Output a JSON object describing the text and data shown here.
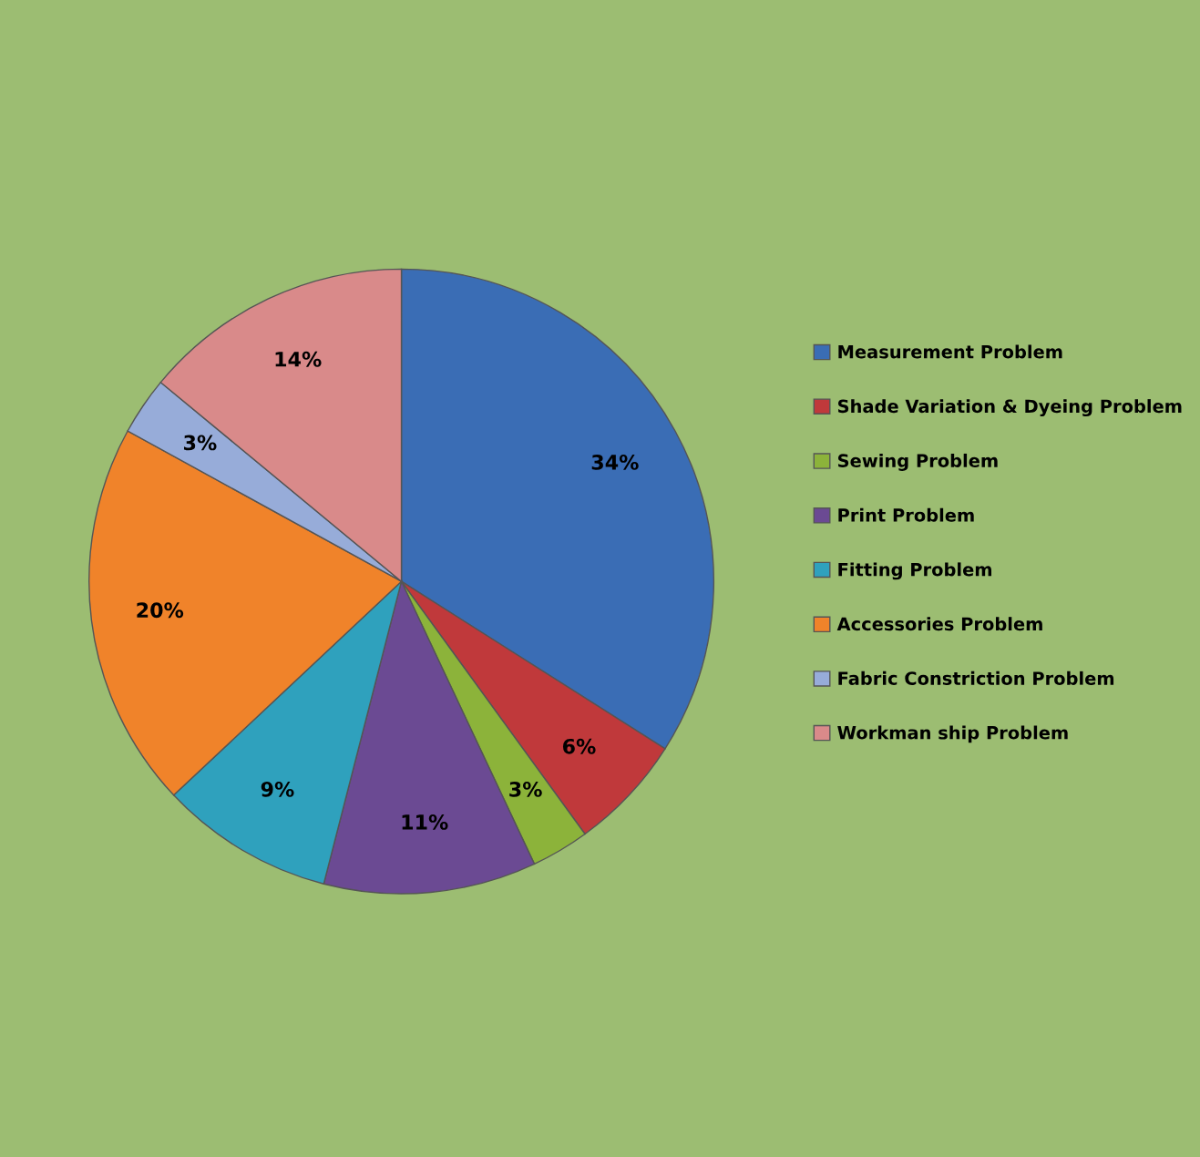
{
  "chart_data": {
    "type": "pie",
    "categories": [
      "Measurement Problem",
      "Shade Variation & Dyeing Problem",
      "Sewing Problem",
      "Print Problem",
      "Fitting Problem",
      "Accessories Problem",
      "Fabric Constriction Problem",
      "Workman ship Problem"
    ],
    "values": [
      34,
      6,
      3,
      11,
      9,
      20,
      3,
      14
    ],
    "value_labels": [
      "34%",
      "6%",
      "3%",
      "11%",
      "9%",
      "20%",
      "3%",
      "14%"
    ],
    "colors": [
      "#3a6db5",
      "#c0393b",
      "#8cb33a",
      "#6b4a93",
      "#2fa1bd",
      "#f0832a",
      "#97acd9",
      "#d98a8a"
    ],
    "legend": "right"
  }
}
